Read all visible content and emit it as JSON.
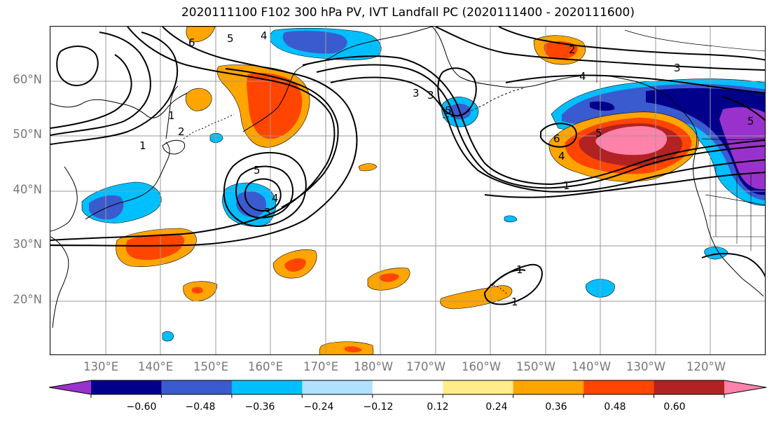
{
  "title": "2020111100 F102 300 hPa PV, IVT Landfall PC (2020111400 - 2020111600)",
  "lat_labels": [
    "60°N",
    "50°N",
    "40°N",
    "30°N",
    "20°N"
  ],
  "lon_labels": [
    "130°E",
    "140°E",
    "150°E",
    "160°E",
    "170°E",
    "180°W",
    "170°W",
    "160°W",
    "150°W",
    "140°W",
    "130°W",
    "120°W"
  ],
  "colorbar": {
    "colors": [
      "#9932cc",
      "#00008b",
      "#3a5bcf",
      "#00bfff",
      "#b0e2ff",
      "#ffffff",
      "#ffec8b",
      "#ffa500",
      "#ff4500",
      "#b22222",
      "#ff82ab"
    ],
    "tick_labels": [
      "−0.60",
      "−0.48",
      "−0.36",
      "−0.24",
      "−0.12",
      "0.12",
      "0.24",
      "0.36",
      "0.48",
      "0.60"
    ]
  },
  "contour_labels": [
    "6",
    "5",
    "4",
    "1",
    "2",
    "1",
    "5",
    "3",
    "4",
    "3",
    "5",
    "2",
    "4",
    "3",
    "6",
    "5",
    "4",
    "1",
    "3",
    "5",
    "1",
    "1"
  ],
  "colors": {
    "axis_label": "#777777",
    "grid": "#999999"
  }
}
